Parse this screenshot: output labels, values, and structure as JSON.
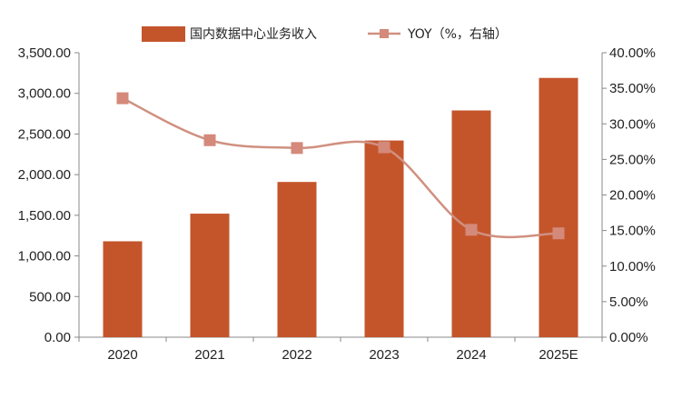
{
  "chart_data": {
    "type": "bar+line",
    "categories": [
      "2020",
      "2021",
      "2022",
      "2023",
      "2024",
      "2025E"
    ],
    "series": [
      {
        "name": "国内数据中心业务收入",
        "type": "bar",
        "axis": "left",
        "values": [
          1180,
          1520,
          1910,
          2420,
          2790,
          3190
        ]
      },
      {
        "name": "YOY（%，右轴）",
        "type": "line",
        "axis": "right",
        "values": [
          33.6,
          27.7,
          26.6,
          26.7,
          15.1,
          14.6
        ]
      }
    ],
    "y_left": {
      "min": 0,
      "max": 3500,
      "step": 500,
      "ticks": [
        "0.00",
        "500.00",
        "1,000.00",
        "1,500.00",
        "2,000.00",
        "2,500.00",
        "3,000.00",
        "3,500.00"
      ]
    },
    "y_right": {
      "min": 0,
      "max": 40,
      "step": 5,
      "ticks": [
        "0.00%",
        "5.00%",
        "10.00%",
        "15.00%",
        "20.00%",
        "25.00%",
        "30.00%",
        "35.00%",
        "40.00%"
      ]
    },
    "grid": false,
    "legend_position": "top"
  },
  "colors": {
    "bar": "#C4552B",
    "line": "#D09080",
    "marker": "#D4897A",
    "axis": "#888888"
  }
}
